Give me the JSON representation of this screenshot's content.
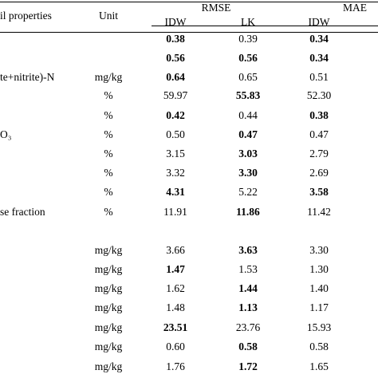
{
  "header": {
    "soil_properties": "il properties",
    "unit": "Unit",
    "rmse": "RMSE",
    "mae": "MAE",
    "methods": [
      "IDW",
      "LK",
      "IDW"
    ]
  },
  "rows": [
    {
      "prop": "",
      "unit": "",
      "vals": [
        "0.38",
        "0.39",
        "0.34"
      ],
      "bold": [
        true,
        false,
        true
      ]
    },
    {
      "prop": "",
      "unit": "",
      "vals": [
        "0.56",
        "0.56",
        "0.34"
      ],
      "bold": [
        true,
        true,
        true
      ]
    },
    {
      "prop": "te+nitrite)-N",
      "unit": "mg/kg",
      "vals": [
        "0.64",
        "0.65",
        "0.51"
      ],
      "bold": [
        true,
        false,
        false
      ]
    },
    {
      "prop": "",
      "unit": "%",
      "vals": [
        "59.97",
        "55.83",
        "52.30"
      ],
      "bold": [
        false,
        true,
        false
      ]
    },
    {
      "prop": "",
      "unit": "%",
      "vals": [
        "0.42",
        "0.44",
        "0.38"
      ],
      "bold": [
        true,
        false,
        true
      ]
    },
    {
      "prop": "O₃",
      "unit": "%",
      "vals": [
        "0.50",
        "0.47",
        "0.47"
      ],
      "bold": [
        false,
        true,
        false
      ]
    },
    {
      "prop": "",
      "unit": "%",
      "vals": [
        "3.15",
        "3.03",
        "2.79"
      ],
      "bold": [
        false,
        true,
        false
      ]
    },
    {
      "prop": "",
      "unit": "%",
      "vals": [
        "3.32",
        "3.30",
        "2.69"
      ],
      "bold": [
        false,
        true,
        false
      ]
    },
    {
      "prop": "",
      "unit": "%",
      "vals": [
        "4.31",
        "5.22",
        "3.58"
      ],
      "bold": [
        true,
        false,
        true
      ]
    },
    {
      "prop": "se fraction",
      "unit": "%",
      "vals": [
        "11.91",
        "11.86",
        "11.42"
      ],
      "bold": [
        false,
        true,
        false
      ]
    },
    {
      "prop": "",
      "unit": "mg/kg",
      "vals": [
        "3.66",
        "3.63",
        "3.30"
      ],
      "bold": [
        false,
        true,
        false
      ]
    },
    {
      "prop": "",
      "unit": "mg/kg",
      "vals": [
        "1.47",
        "1.53",
        "1.30"
      ],
      "bold": [
        true,
        false,
        false
      ]
    },
    {
      "prop": "",
      "unit": "mg/kg",
      "vals": [
        "1.62",
        "1.44",
        "1.40"
      ],
      "bold": [
        false,
        true,
        false
      ]
    },
    {
      "prop": "",
      "unit": "mg/kg",
      "vals": [
        "1.48",
        "1.13",
        "1.17"
      ],
      "bold": [
        false,
        true,
        false
      ]
    },
    {
      "prop": "",
      "unit": "mg/kg",
      "vals": [
        "23.51",
        "23.76",
        "15.93"
      ],
      "bold": [
        true,
        false,
        false
      ]
    },
    {
      "prop": "",
      "unit": "mg/kg",
      "vals": [
        "0.60",
        "0.58",
        "0.58"
      ],
      "bold": [
        false,
        true,
        false
      ]
    },
    {
      "prop": "",
      "unit": "mg/kg",
      "vals": [
        "1.76",
        "1.72",
        "1.65"
      ],
      "bold": [
        false,
        true,
        false
      ]
    }
  ]
}
